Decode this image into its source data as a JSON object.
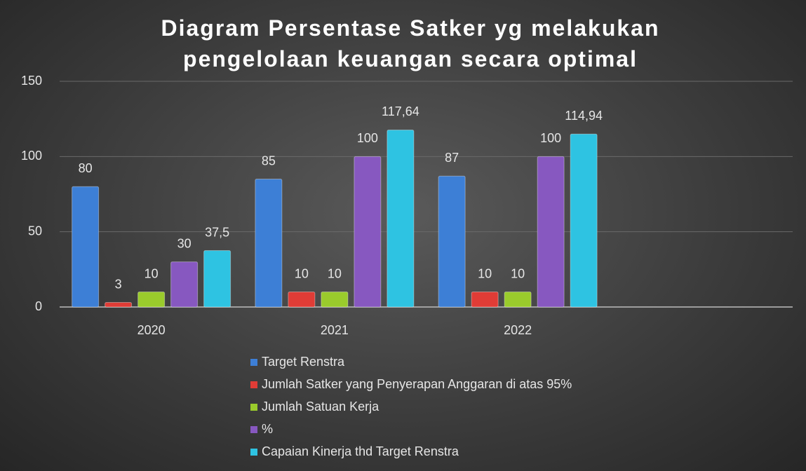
{
  "chart_data": {
    "type": "bar",
    "title": "Diagram Persentase Satker yg melakukan pengelolaan keuangan secara optimal",
    "categories": [
      "2020",
      "2021",
      "2022",
      null
    ],
    "series": [
      {
        "name": "Target Renstra",
        "color": "#3d7fd6",
        "values": [
          80,
          85,
          87,
          null
        ]
      },
      {
        "name": "Jumlah Satker yang Penyerapan Anggaran di atas 95%",
        "color": "#e03c36",
        "values": [
          3,
          10,
          10,
          null
        ]
      },
      {
        "name": "Jumlah Satuan Kerja",
        "color": "#9acb2c",
        "values": [
          10,
          10,
          10,
          null
        ]
      },
      {
        "name": "%",
        "color": "#8758c0",
        "values": [
          30,
          100,
          100,
          null
        ]
      },
      {
        "name": "Capaian Kinerja thd Target Renstra",
        "color": "#2ec3e2",
        "values": [
          37.5,
          117.64,
          114.94,
          null
        ],
        "value_labels": [
          "37,5",
          "117,64",
          "114,94",
          null
        ]
      }
    ],
    "ylim": [
      0,
      150
    ],
    "yticks": [
      0,
      50,
      100,
      150
    ],
    "grid": true,
    "legend": "bottom"
  }
}
